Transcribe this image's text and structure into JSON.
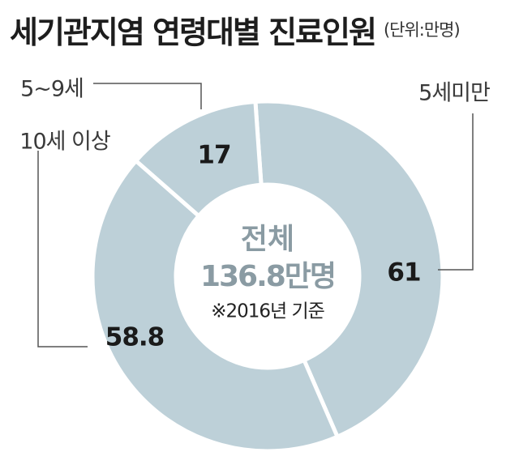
{
  "title": "세기관지염 연령대별 진료인원",
  "unit_note": "(단위:만명)",
  "colors": {
    "slice": "#bdd0d8",
    "separator": "#ffffff",
    "value_text": "#1a1a1a",
    "center_text": "#8a9ba3",
    "label_text": "#3a3a3a",
    "leader_line": "#555555"
  },
  "chart_data": {
    "type": "pie",
    "style": "donut",
    "categories": [
      "5세미만",
      "10세 이상",
      "5~9세"
    ],
    "values": [
      61,
      58.8,
      17
    ],
    "value_labels": [
      "61",
      "58.8",
      "17"
    ],
    "center_text": {
      "line1": "전체",
      "line2": "136.8만명",
      "note": "※2016년 기준"
    },
    "title": "세기관지염 연령대별 진료인원",
    "unit": "만명"
  }
}
